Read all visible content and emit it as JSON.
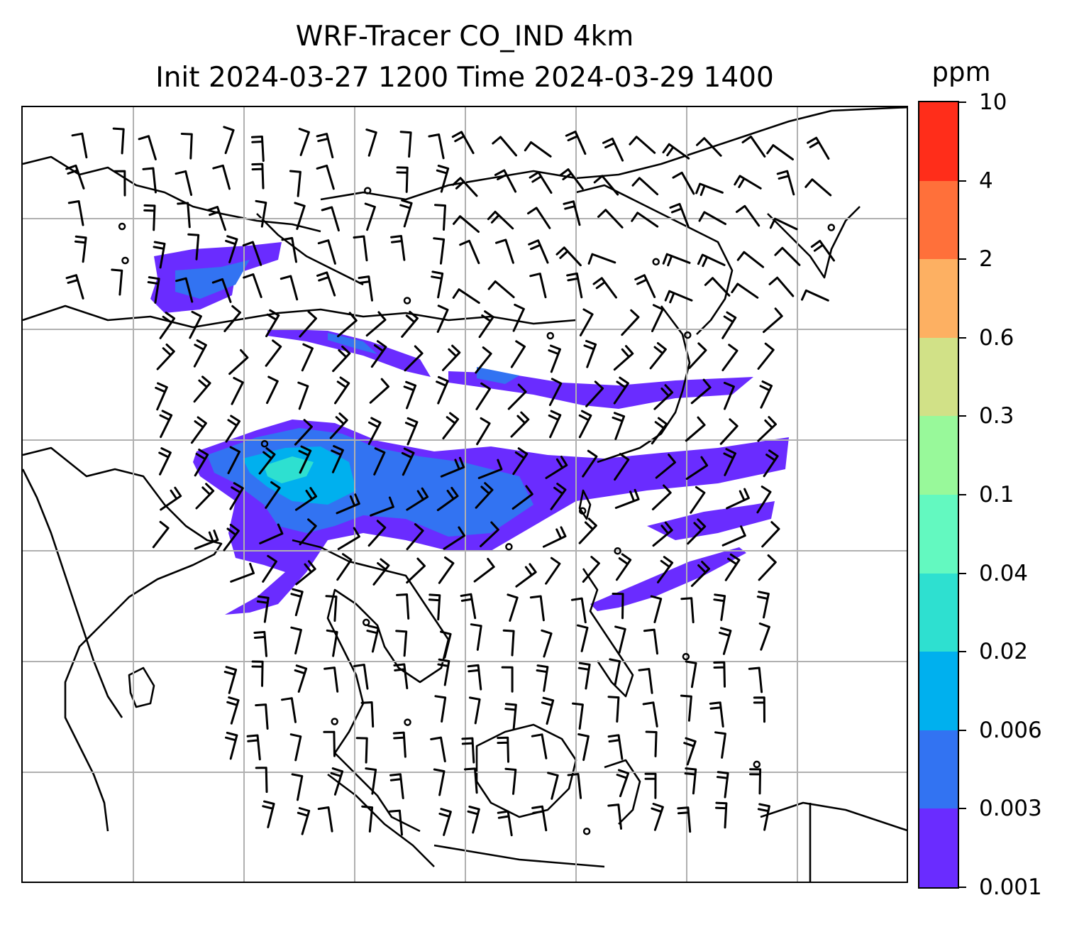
{
  "title": {
    "line1": "WRF-Tracer CO_IND 4km",
    "line2": "Init 2024-03-27 1200 Time 2024-03-29 1400"
  },
  "colorbar": {
    "unit": "ppm",
    "levels": [
      "0.001",
      "0.003",
      "0.006",
      "0.02",
      "0.04",
      "0.1",
      "0.3",
      "0.6",
      "2",
      "4",
      "10"
    ],
    "colors": [
      "#6a2cff",
      "#3273f2",
      "#00b0ee",
      "#2ee0d0",
      "#63f9c0",
      "#98f99a",
      "#d1e187",
      "#fdb062",
      "#ff703a",
      "#ff2d1a"
    ]
  },
  "map": {
    "gridlines": true,
    "field": "CO_IND tracer concentration",
    "overlay": "wind barbs",
    "coastlines": true
  }
}
